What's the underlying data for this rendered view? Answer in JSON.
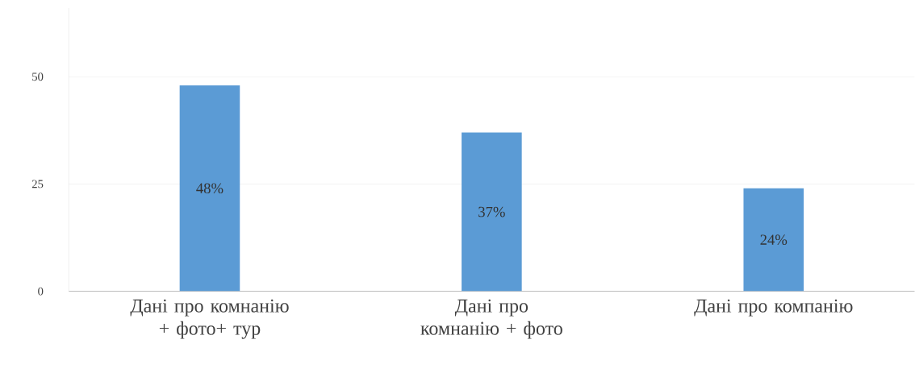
{
  "chart_data": {
    "type": "bar",
    "categories": [
      "Дані про комнанію + фото+ тур",
      "Дані про комнанію + фото",
      "Дані про компанію"
    ],
    "values": [
      48,
      37,
      24
    ],
    "value_labels": [
      "48%",
      "37%",
      "24%"
    ],
    "color": "#5b9bd5",
    "ylim": [
      0,
      66
    ],
    "yticks": [
      0,
      25,
      50
    ],
    "grid": "y"
  }
}
